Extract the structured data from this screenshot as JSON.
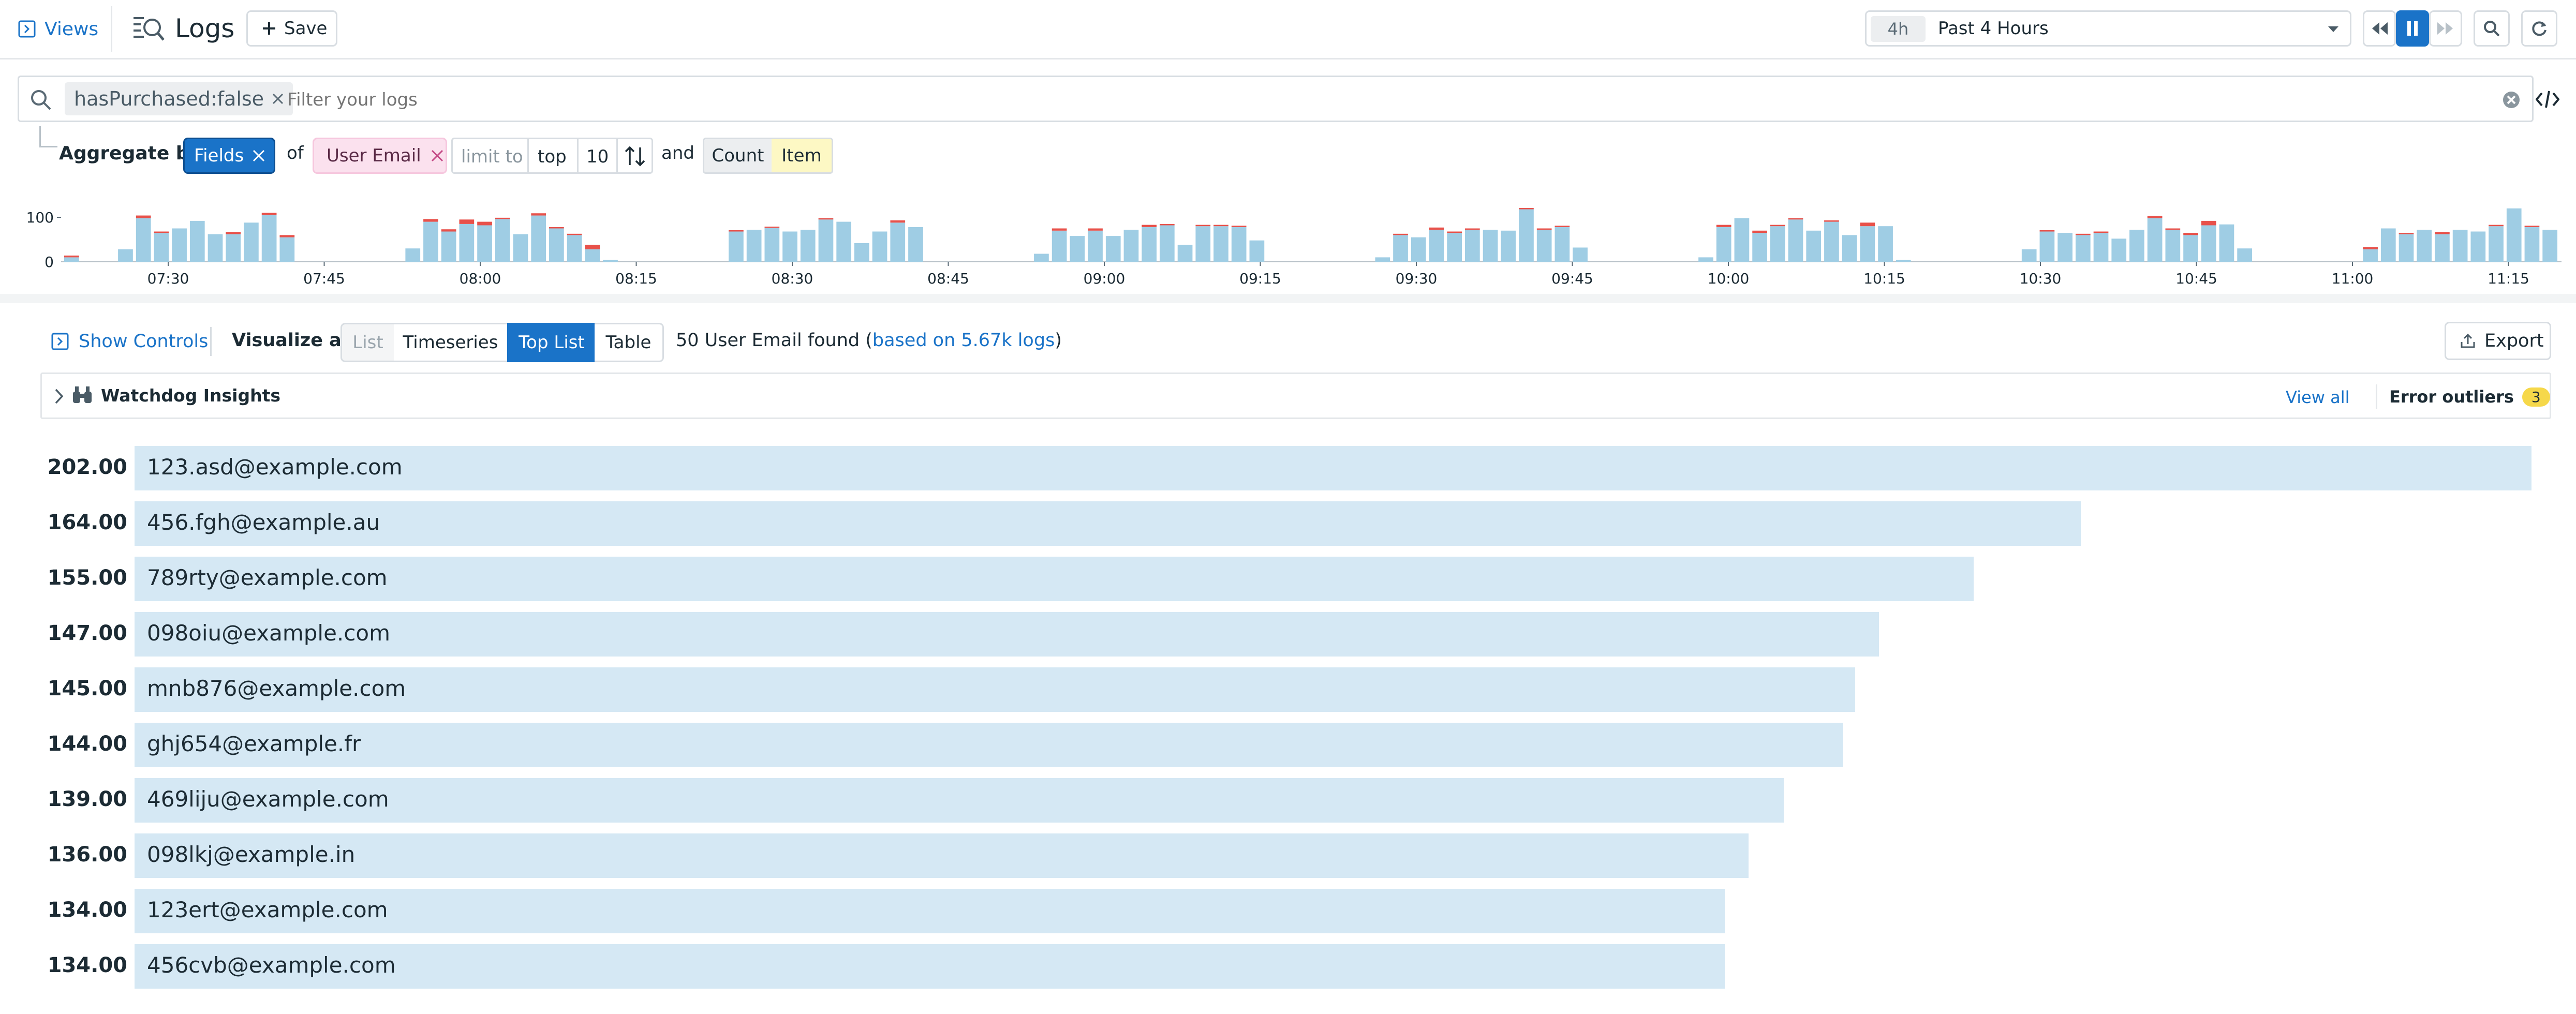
{
  "header": {
    "views_label": "Views",
    "title": "Logs",
    "save_label": "Save",
    "time_badge": "4h",
    "time_range": "Past 4 Hours"
  },
  "search": {
    "chip": "hasPurchased:false",
    "placeholder": "Filter your logs"
  },
  "aggregate": {
    "label": "Aggregate by",
    "fields": "Fields",
    "of": "of",
    "facet": "User Email",
    "limit_to": "limit to",
    "top": "top",
    "limit": "10",
    "and": "and",
    "count": "Count",
    "item": "Item"
  },
  "histogram": {
    "y_ticks": [
      "100",
      "0"
    ],
    "ylim": [
      0,
      120
    ],
    "x_ticks": [
      "07:30",
      "07:45",
      "08:00",
      "08:15",
      "08:30",
      "08:45",
      "09:00",
      "09:15",
      "09:30",
      "09:45",
      "10:00",
      "10:15",
      "10:30",
      "10:45",
      "11:00",
      "11:15"
    ],
    "colors": {
      "info": "#9fcde4",
      "error": "#e8514a"
    },
    "info": [
      10,
      0,
      0,
      28,
      98,
      65,
      75,
      92,
      62,
      62,
      88,
      105,
      55,
      0,
      0,
      0,
      0,
      0,
      0,
      30,
      90,
      68,
      85,
      82,
      96,
      62,
      104,
      75,
      60,
      28,
      4,
      0,
      0,
      0,
      0,
      0,
      0,
      68,
      72,
      76,
      68,
      72,
      95,
      90,
      42,
      68,
      88,
      78,
      0,
      0,
      0,
      0,
      0,
      0,
      18,
      70,
      58,
      70,
      58,
      72,
      78,
      82,
      38,
      80,
      80,
      78,
      48,
      0,
      0,
      0,
      0,
      0,
      0,
      10,
      60,
      55,
      72,
      65,
      72,
      72,
      70,
      118,
      72,
      78,
      32,
      0,
      0,
      0,
      0,
      0,
      0,
      10,
      78,
      98,
      65,
      80,
      95,
      70,
      90,
      60,
      80,
      80,
      4,
      0,
      0,
      0,
      0,
      0,
      0,
      28,
      68,
      65,
      60,
      65,
      52,
      72,
      98,
      72,
      60,
      82,
      84,
      30,
      0,
      0,
      0,
      0,
      0,
      0,
      28,
      75,
      62,
      72,
      62,
      72,
      68,
      80,
      120,
      78,
      72
    ],
    "error": [
      4,
      0,
      0,
      0,
      6,
      3,
      0,
      0,
      0,
      5,
      0,
      5,
      5,
      0,
      0,
      0,
      0,
      0,
      0,
      0,
      6,
      5,
      10,
      8,
      3,
      0,
      5,
      3,
      3,
      10,
      0,
      0,
      0,
      0,
      0,
      0,
      0,
      3,
      0,
      3,
      0,
      0,
      3,
      0,
      0,
      0,
      5,
      0,
      0,
      0,
      0,
      0,
      0,
      0,
      0,
      5,
      0,
      5,
      0,
      0,
      5,
      3,
      0,
      3,
      3,
      3,
      0,
      0,
      0,
      0,
      0,
      0,
      0,
      0,
      3,
      0,
      5,
      3,
      3,
      0,
      0,
      3,
      3,
      3,
      0,
      0,
      0,
      0,
      0,
      0,
      0,
      0,
      5,
      0,
      5,
      3,
      3,
      0,
      3,
      0,
      8,
      0,
      0,
      0,
      0,
      0,
      0,
      0,
      0,
      0,
      3,
      0,
      3,
      3,
      0,
      0,
      5,
      3,
      5,
      10,
      0,
      0,
      0,
      0,
      0,
      0,
      0,
      0,
      5,
      0,
      3,
      0,
      5,
      0,
      0,
      3,
      0,
      3
    ]
  },
  "controls": {
    "show_controls": "Show Controls",
    "visualize_as": "Visualize as",
    "options": [
      "List",
      "Timeseries",
      "Top List",
      "Table"
    ],
    "selected": "Top List",
    "found_prefix": "50 User Email found (",
    "found_link": "based on 5.67k logs",
    "found_suffix": ")",
    "export": "Export"
  },
  "watchdog": {
    "title": "Watchdog Insights",
    "view_all": "View all",
    "outliers_label": "Error outliers",
    "outliers_count": "3"
  },
  "chart_data": {
    "type": "bar",
    "orientation": "horizontal",
    "categories": [
      "123.asd@example.com",
      "456.fgh@example.au",
      "789rty@example.com",
      "098oiu@example.com",
      "mnb876@example.com",
      "ghj654@example.fr",
      "469liju@example.com",
      "098lkj@example.in",
      "123ert@example.com",
      "456cvb@example.com"
    ],
    "values": [
      202.0,
      164.0,
      155.0,
      147.0,
      145.0,
      144.0,
      139.0,
      136.0,
      134.0,
      134.0
    ],
    "value_labels": [
      "202.00",
      "164.00",
      "155.00",
      "147.00",
      "145.00",
      "144.00",
      "139.00",
      "136.00",
      "134.00",
      "134.00"
    ],
    "bar_color": "#d5e8f4"
  }
}
